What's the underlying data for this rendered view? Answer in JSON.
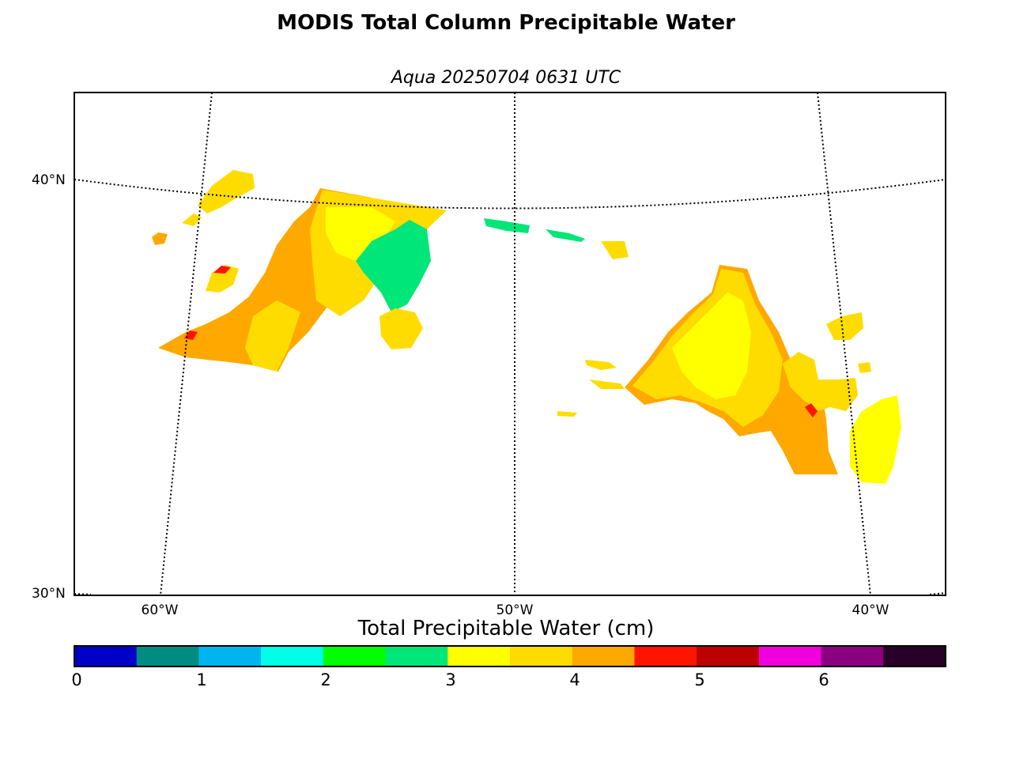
{
  "title": "MODIS Total Column Precipitable Water",
  "subtitle": "Aqua 20250704 0631 UTC",
  "lat_labels": [
    "40°N",
    "30°N"
  ],
  "lon_labels": [
    "60°W",
    "50°W",
    "40°W"
  ],
  "colorbar": {
    "title": "Total Precipitable Water (cm)",
    "ticks": [
      "0",
      "1",
      "2",
      "3",
      "4",
      "5",
      "6"
    ],
    "colors": [
      "#0000c8",
      "#008c80",
      "#00b4f0",
      "#00ffe6",
      "#00ff00",
      "#00e678",
      "#ffff00",
      "#ffdc00",
      "#ffa800",
      "#ff1400",
      "#bc0000",
      "#f000dc",
      "#8c0080",
      "#280028"
    ]
  },
  "colors": {
    "pw_2_5": "#00e678",
    "pw_3_0": "#ffff00",
    "pw_3_5": "#ffdc00",
    "pw_4_0": "#ffa800",
    "pw_4_5": "#ff1400"
  }
}
